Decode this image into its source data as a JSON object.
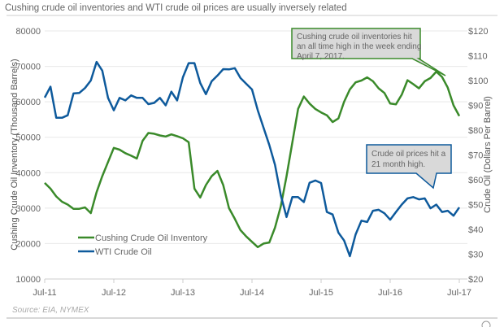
{
  "chart_data": {
    "type": "line",
    "title": "Cushing crude oil inventories and WTI crude oil prices are usually inversely related",
    "source": "Source: EIA, NYMEX",
    "ylabel_left": "Cushing Crude Oil Inventory (Thousand Barrels)",
    "ylabel_right": "Crude Oil (Dollars Per Barrel)",
    "ylim_left": [
      10000,
      80000
    ],
    "ylim_right": [
      20,
      120
    ],
    "yticks_left": [
      "80000",
      "70000",
      "60000",
      "50000",
      "40000",
      "30000",
      "20000",
      "10000"
    ],
    "yticks_right": [
      "$120",
      "$110",
      "$100",
      "$90",
      "$80",
      "$70",
      "$60",
      "$50",
      "$40",
      "$30",
      "$20"
    ],
    "xticks": [
      "Jul-11",
      "Jul-12",
      "Jul-13",
      "Jul-14",
      "Jul-15",
      "Jul-16",
      "Jul-17"
    ],
    "xlim": [
      "2011-07",
      "2017-07"
    ],
    "grid": "horizontal",
    "legend_placement": "bottom-left",
    "series": [
      {
        "name": "Cushing Crude Oil Inventory",
        "axis": "left",
        "color": "#3a8a2a",
        "start": "2011-07",
        "frequency": "monthly",
        "values": [
          37100,
          35500,
          33300,
          31800,
          31000,
          29800,
          29800,
          30200,
          28600,
          34500,
          39000,
          43000,
          47000,
          46500,
          45500,
          44800,
          44000,
          49000,
          51200,
          51000,
          50500,
          50200,
          50800,
          50300,
          49700,
          48600,
          35500,
          33000,
          36500,
          39000,
          40500,
          36500,
          30000,
          27000,
          23800,
          22000,
          20500,
          19000,
          20000,
          20300,
          24500,
          30500,
          39000,
          48500,
          58000,
          61500,
          59500,
          58000,
          57000,
          56200,
          54300,
          55300,
          60000,
          63500,
          65500,
          66000,
          66900,
          65800,
          63800,
          62500,
          59500,
          59300,
          62000,
          66100,
          65000,
          63800,
          65800,
          66700,
          68500,
          67000,
          64000,
          59000,
          56000
        ]
      },
      {
        "name": "WTI Crude Oil",
        "axis": "right",
        "color": "#0e5a9c",
        "start": "2011-07",
        "frequency": "monthly",
        "values": [
          93.1,
          97.5,
          85,
          85,
          86,
          94.8,
          95,
          97,
          100,
          107.5,
          104,
          93,
          88,
          93,
          92,
          94,
          93,
          93,
          90.5,
          91,
          93,
          90,
          95.5,
          92,
          101.3,
          107,
          107,
          99,
          94.5,
          99.7,
          102,
          104.6,
          104.5,
          105,
          101,
          98.7,
          96.4,
          88,
          81,
          74,
          66,
          53.8,
          45,
          53,
          53,
          51,
          58.8,
          59.7,
          58.7,
          47,
          46,
          38.7,
          35.5,
          29.2,
          38,
          43.5,
          43,
          47.5,
          47.9,
          46.5,
          43.9,
          47,
          50,
          52.5,
          53,
          52.1,
          52.5,
          48.5,
          50,
          47,
          47.5,
          45.5,
          48.9
        ]
      }
    ],
    "annotations": [
      {
        "text_lines": [
          "Cushing crude oil inventories hit",
          "an all time high in the week ending",
          "April 7, 2017."
        ],
        "series": "Cushing Crude Oil Inventory",
        "border_color": "#3a8a2a"
      },
      {
        "text_lines": [
          "Crude oil prices hit a",
          "21 month high."
        ],
        "series": "WTI Crude Oil",
        "border_color": "#0e5a9c"
      }
    ]
  }
}
